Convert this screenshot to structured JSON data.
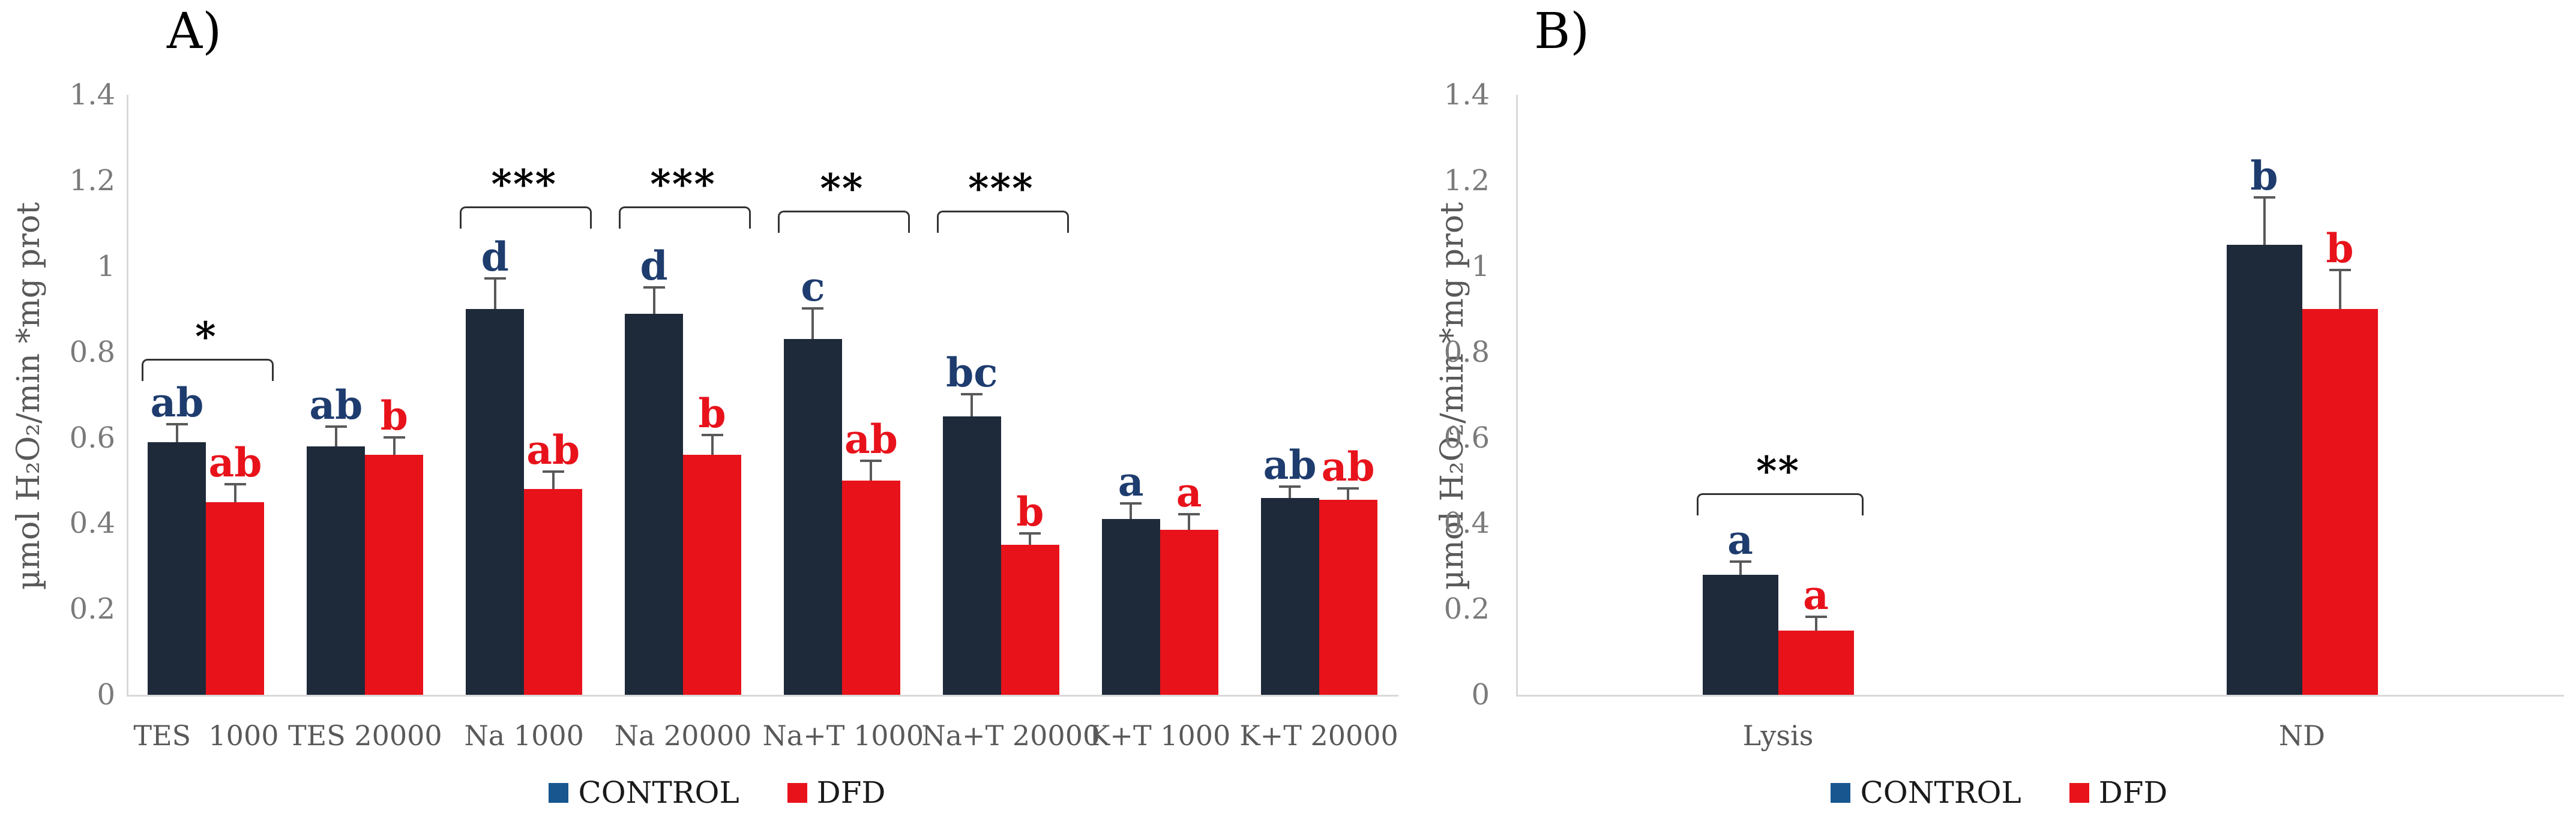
{
  "palette": {
    "control_bar": "#1e2a3a",
    "dfd_bar": "#e8121b",
    "legend_control_swatch": "#17568f",
    "legend_dfd_swatch": "#e8121b",
    "control_letter": "#1e3c6e",
    "dfd_letter": "#e8121b",
    "axis_line": "#d9d9d9",
    "error_bar": "#595959",
    "bracket": "#333333",
    "tick_text": "#7a7a7a",
    "category_text": "#595959",
    "axis_label_text": "#595959",
    "title_text": "#000000",
    "legend_text": "#1a1a1a"
  },
  "legend": {
    "entries": [
      {
        "label": "CONTROL",
        "swatch": "#17568f"
      },
      {
        "label": "DFD",
        "swatch": "#e8121b"
      }
    ]
  },
  "chart_data": [
    {
      "id": "panel-a",
      "type": "bar",
      "title": "A)",
      "ylabel": "µmol H₂O₂/min *mg prot",
      "ylim": [
        0,
        1.4
      ],
      "yticks": [
        "1.4",
        "1.2",
        "1",
        "0.8",
        "0.6",
        "0.4",
        "0.2",
        "0"
      ],
      "grid": false,
      "legend_position": "bottom",
      "categories": [
        "TES  1000",
        "TES 20000",
        "Na 1000",
        "Na 20000",
        "Na+T 1000",
        "Na+T 20000",
        "K+T 1000",
        "K+T 20000"
      ],
      "series": [
        {
          "name": "CONTROL",
          "color": "#1e2a3a",
          "letter_color": "#1e3c6e",
          "values": [
            0.59,
            0.58,
            0.9,
            0.89,
            0.83,
            0.65,
            0.41,
            0.46
          ],
          "errors": [
            0.04,
            0.045,
            0.07,
            0.06,
            0.07,
            0.05,
            0.035,
            0.025
          ],
          "letters": [
            "ab",
            "ab",
            "d",
            "d",
            "c",
            "bc",
            "a",
            "ab"
          ]
        },
        {
          "name": "DFD",
          "color": "#e8121b",
          "letter_color": "#e8121b",
          "values": [
            0.45,
            0.56,
            0.48,
            0.56,
            0.5,
            0.35,
            0.385,
            0.455
          ],
          "errors": [
            0.04,
            0.04,
            0.04,
            0.045,
            0.045,
            0.025,
            0.035,
            0.025
          ],
          "letters": [
            "ab",
            "b",
            "ab",
            "b",
            "ab",
            "b",
            "a",
            "ab"
          ]
        }
      ],
      "significance": [
        {
          "category_index": 0,
          "label": "*",
          "height": 0.785
        },
        {
          "category_index": 2,
          "label": "***",
          "height": 1.14
        },
        {
          "category_index": 3,
          "label": "***",
          "height": 1.14
        },
        {
          "category_index": 4,
          "label": "**",
          "height": 1.13
        },
        {
          "category_index": 5,
          "label": "***",
          "height": 1.13
        }
      ]
    },
    {
      "id": "panel-b",
      "type": "bar",
      "title": "B)",
      "ylabel": "µmol H₂O₂/min *mg prot",
      "ylim": [
        0,
        1.4
      ],
      "yticks": [
        "1.4",
        "1.2",
        "1",
        "0.8",
        "0.6",
        "0.4",
        "0.2",
        "0"
      ],
      "grid": false,
      "legend_position": "bottom",
      "categories": [
        "Lysis",
        "ND"
      ],
      "series": [
        {
          "name": "CONTROL",
          "color": "#1e2a3a",
          "letter_color": "#1e3c6e",
          "values": [
            0.28,
            1.05
          ],
          "errors": [
            0.03,
            0.11
          ],
          "letters": [
            "a",
            "b"
          ]
        },
        {
          "name": "DFD",
          "color": "#e8121b",
          "letter_color": "#e8121b",
          "values": [
            0.15,
            0.9
          ],
          "errors": [
            0.03,
            0.09
          ],
          "letters": [
            "a",
            "b"
          ]
        }
      ],
      "significance": [
        {
          "category_index": 0,
          "label": "**",
          "height": 0.47
        }
      ]
    }
  ]
}
